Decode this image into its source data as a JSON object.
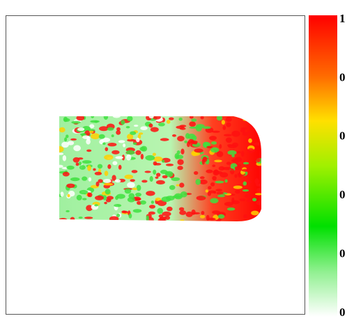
{
  "colorbar": {
    "tick_labels": [
      "1",
      "0",
      "0",
      "0",
      "0",
      "0"
    ]
  }
}
